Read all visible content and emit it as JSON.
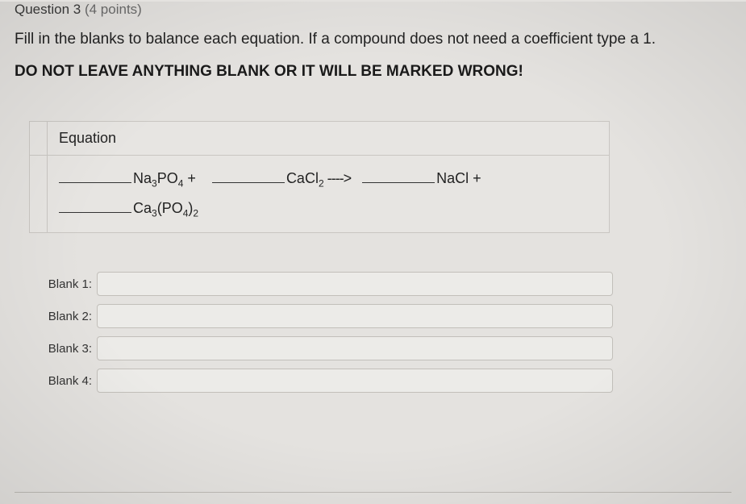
{
  "question": {
    "label": "Question 3",
    "points": "(4 points)"
  },
  "instructions": {
    "line1": "Fill in the blanks to balance each equation.  If a compound does not need a coefficient type a 1.",
    "line2": "DO NOT LEAVE ANYTHING BLANK OR IT WILL BE MARKED WRONG!"
  },
  "table": {
    "header": "Equation",
    "formula": {
      "part1": "Na",
      "sub1": "3",
      "part2": "PO",
      "sub2": "4",
      "plus1": " + ",
      "part3": "CaCl",
      "sub3": "2",
      "arrow": " ----> ",
      "part4": "NaCl +",
      "part5": "Ca",
      "sub5": "3",
      "part6": "(PO",
      "sub6": "4",
      "part7": ")",
      "sub7": "2"
    }
  },
  "blanks": {
    "b1": {
      "label": "Blank 1:",
      "value": ""
    },
    "b2": {
      "label": "Blank 2:",
      "value": ""
    },
    "b3": {
      "label": "Blank 3:",
      "value": ""
    },
    "b4": {
      "label": "Blank 4:",
      "value": ""
    }
  }
}
